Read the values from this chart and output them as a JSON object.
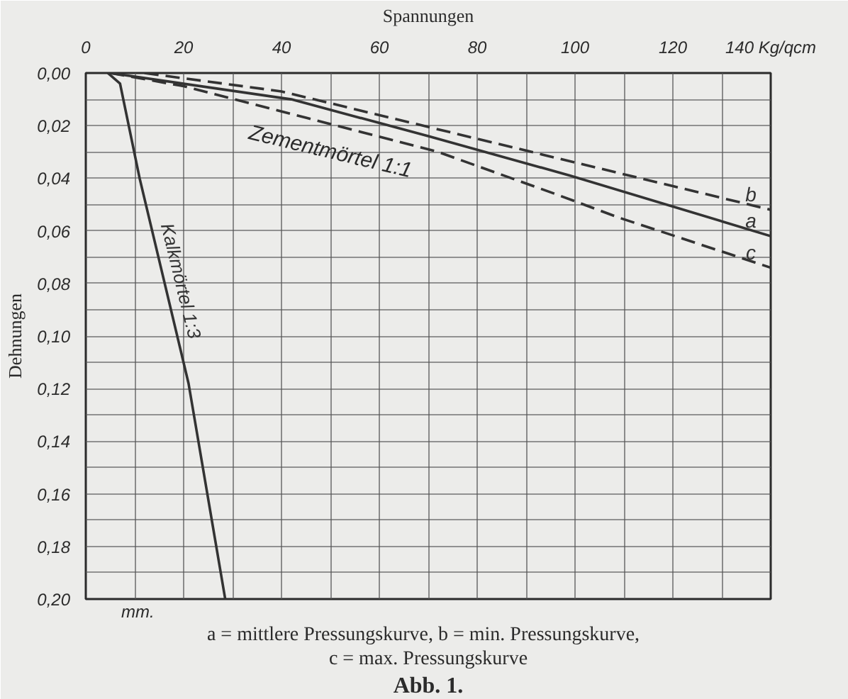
{
  "chart_data": {
    "type": "line",
    "xlabel": "Spannungen",
    "ylabel": "Dehnungen",
    "xlim": [
      0,
      140
    ],
    "ylim": [
      0.2,
      0
    ],
    "xticks": [
      0,
      {
        "value": 10,
        "label": null
      },
      20,
      {
        "value": 30,
        "label": null
      },
      40,
      {
        "value": 50,
        "label": null
      },
      60,
      {
        "value": 70,
        "label": null
      },
      80,
      {
        "value": 90,
        "label": null
      },
      100,
      {
        "value": 110,
        "label": null
      },
      120,
      {
        "value": 130,
        "label": null
      },
      {
        "value": 140,
        "label": "140 Kg/qcm"
      }
    ],
    "yticks": [
      {
        "value": 0,
        "label": "0,00"
      },
      {
        "value": 0.01,
        "label": null
      },
      {
        "value": 0.02,
        "label": "0,02"
      },
      {
        "value": 0.03,
        "label": null
      },
      {
        "value": 0.04,
        "label": "0,04"
      },
      {
        "value": 0.05,
        "label": null
      },
      {
        "value": 0.06,
        "label": "0,06"
      },
      {
        "value": 0.07,
        "label": null
      },
      {
        "value": 0.08,
        "label": "0,08"
      },
      {
        "value": 0.09,
        "label": null
      },
      {
        "value": 0.1,
        "label": "0,10"
      },
      {
        "value": 0.11,
        "label": null
      },
      {
        "value": 0.12,
        "label": "0,12"
      },
      {
        "value": 0.13,
        "label": null
      },
      {
        "value": 0.14,
        "label": "0,14"
      },
      {
        "value": 0.15,
        "label": null
      },
      {
        "value": 0.16,
        "label": "0,16"
      },
      {
        "value": 0.17,
        "label": null
      },
      {
        "value": 0.18,
        "label": "0,18"
      },
      {
        "value": 0.19,
        "label": null
      },
      {
        "value": 0.2,
        "label": "0,20"
      }
    ],
    "grid": true,
    "series": [
      {
        "name": "b",
        "color": "#333333",
        "line_style": "dashed",
        "x": [
          12,
          40,
          80,
          120,
          140
        ],
        "values": [
          0,
          0.007,
          0.025,
          0.043,
          0.052
        ]
      },
      {
        "name": "a",
        "color": "#333333",
        "line_style": "solid",
        "x": [
          5,
          42,
          70,
          99,
          140
        ],
        "values": [
          0,
          0.01,
          0.024,
          0.039,
          0.062
        ]
      },
      {
        "name": "c",
        "color": "#333333",
        "line_style": "dashed",
        "x": [
          5,
          20,
          45,
          72,
          96,
          109,
          140
        ],
        "values": [
          0,
          0.005,
          0.017,
          0.03,
          0.046,
          0.055,
          0.074
        ]
      },
      {
        "name": "Kalkmörtel 1:3",
        "color": "#333333",
        "line_style": "solid",
        "x": [
          4.5,
          7,
          11,
          21,
          28.5
        ],
        "values": [
          0,
          0.004,
          0.04,
          0.118,
          0.2
        ]
      }
    ],
    "annotations": [
      "Zementmörtel 1:1",
      "mm.",
      "a = mittlere Pressungskurve,   b = min. Pressungskurve,",
      "c = max. Pressungskurve",
      "Abb. 1."
    ]
  }
}
